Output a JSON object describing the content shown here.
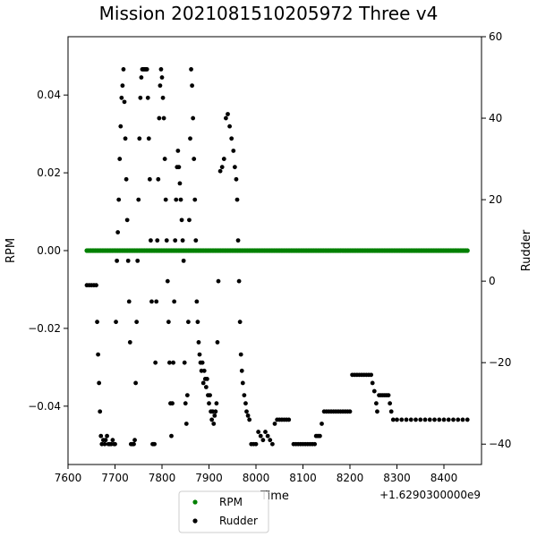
{
  "chart_data": {
    "type": "scatter",
    "title": "Mission 2021081510205972 Three v4",
    "xlabel": "Time",
    "ylabel_left": "RPM",
    "ylabel_right": "Rudder",
    "x_offset_label": "+1.6290300000e9",
    "xlim": [
      7600,
      8480
    ],
    "ylim_left": [
      -0.055,
      0.055
    ],
    "ylim_right": [
      -45,
      60
    ],
    "x_ticks": [
      7600,
      7700,
      7800,
      7900,
      8000,
      8100,
      8200,
      8300,
      8400
    ],
    "y_ticks_left": [
      -0.04,
      -0.02,
      0.0,
      0.02,
      0.04
    ],
    "y_tick_labels_left": [
      "−0.04",
      "−0.02",
      "0.00",
      "0.02",
      "0.04"
    ],
    "y_ticks_right": [
      -40,
      -20,
      0,
      20,
      40,
      60
    ],
    "y_tick_labels_right": [
      "−40",
      "−20",
      "0",
      "20",
      "40",
      "60"
    ],
    "grid": false,
    "legend_position": "bottom-center",
    "series": [
      {
        "name": "RPM",
        "axis": "left",
        "color": "#008000",
        "x_range": [
          7640,
          8450
        ],
        "value": 0.0
      },
      {
        "name": "Rudder",
        "axis": "right",
        "color": "#000000",
        "points": [
          [
            7640,
            -1
          ],
          [
            7645,
            -1
          ],
          [
            7650,
            -1
          ],
          [
            7655,
            -1
          ],
          [
            7660,
            -1
          ],
          [
            7662,
            -10
          ],
          [
            7664,
            -18
          ],
          [
            7666,
            -25
          ],
          [
            7668,
            -32
          ],
          [
            7670,
            -38
          ],
          [
            7672,
            -40
          ],
          [
            7675,
            -39
          ],
          [
            7678,
            -40
          ],
          [
            7680,
            -39
          ],
          [
            7683,
            -38
          ],
          [
            7686,
            -40
          ],
          [
            7689,
            -40
          ],
          [
            7692,
            -40
          ],
          [
            7695,
            -39
          ],
          [
            7698,
            -40
          ],
          [
            7700,
            -40
          ],
          [
            7702,
            -10
          ],
          [
            7704,
            5
          ],
          [
            7706,
            12
          ],
          [
            7708,
            20
          ],
          [
            7710,
            30
          ],
          [
            7712,
            38
          ],
          [
            7714,
            45
          ],
          [
            7716,
            48
          ],
          [
            7718,
            52
          ],
          [
            7720,
            44
          ],
          [
            7722,
            35
          ],
          [
            7724,
            25
          ],
          [
            7726,
            15
          ],
          [
            7728,
            5
          ],
          [
            7730,
            -5
          ],
          [
            7732,
            -15
          ],
          [
            7734,
            -40
          ],
          [
            7736,
            -40
          ],
          [
            7738,
            -40
          ],
          [
            7740,
            -40
          ],
          [
            7742,
            -39
          ],
          [
            7744,
            -25
          ],
          [
            7746,
            -10
          ],
          [
            7748,
            5
          ],
          [
            7750,
            20
          ],
          [
            7752,
            35
          ],
          [
            7754,
            45
          ],
          [
            7756,
            50
          ],
          [
            7758,
            52
          ],
          [
            7760,
            52
          ],
          [
            7762,
            52
          ],
          [
            7764,
            52
          ],
          [
            7766,
            52
          ],
          [
            7768,
            52
          ],
          [
            7770,
            45
          ],
          [
            7772,
            35
          ],
          [
            7774,
            25
          ],
          [
            7776,
            10
          ],
          [
            7778,
            -5
          ],
          [
            7780,
            -40
          ],
          [
            7782,
            -40
          ],
          [
            7784,
            -40
          ],
          [
            7786,
            -20
          ],
          [
            7788,
            -5
          ],
          [
            7790,
            10
          ],
          [
            7792,
            25
          ],
          [
            7794,
            40
          ],
          [
            7796,
            48
          ],
          [
            7798,
            52
          ],
          [
            7800,
            50
          ],
          [
            7802,
            45
          ],
          [
            7804,
            40
          ],
          [
            7806,
            30
          ],
          [
            7808,
            20
          ],
          [
            7810,
            10
          ],
          [
            7812,
            0
          ],
          [
            7814,
            -10
          ],
          [
            7816,
            -20
          ],
          [
            7818,
            -30
          ],
          [
            7820,
            -38
          ],
          [
            7822,
            -30
          ],
          [
            7824,
            -20
          ],
          [
            7826,
            -5
          ],
          [
            7828,
            10
          ],
          [
            7830,
            20
          ],
          [
            7832,
            28
          ],
          [
            7834,
            32
          ],
          [
            7836,
            28
          ],
          [
            7838,
            24
          ],
          [
            7840,
            20
          ],
          [
            7842,
            15
          ],
          [
            7844,
            10
          ],
          [
            7846,
            5
          ],
          [
            7848,
            -20
          ],
          [
            7850,
            -30
          ],
          [
            7852,
            -35
          ],
          [
            7854,
            -28
          ],
          [
            7856,
            -10
          ],
          [
            7858,
            15
          ],
          [
            7860,
            35
          ],
          [
            7862,
            52
          ],
          [
            7864,
            48
          ],
          [
            7866,
            40
          ],
          [
            7868,
            30
          ],
          [
            7870,
            20
          ],
          [
            7872,
            10
          ],
          [
            7874,
            -5
          ],
          [
            7876,
            -10
          ],
          [
            7878,
            -15
          ],
          [
            7880,
            -18
          ],
          [
            7882,
            -20
          ],
          [
            7884,
            -22
          ],
          [
            7886,
            -20
          ],
          [
            7888,
            -25
          ],
          [
            7890,
            -22
          ],
          [
            7892,
            -24
          ],
          [
            7894,
            -26
          ],
          [
            7896,
            -24
          ],
          [
            7898,
            -28
          ],
          [
            7900,
            -30
          ],
          [
            7902,
            -28
          ],
          [
            7904,
            -32
          ],
          [
            7906,
            -34
          ],
          [
            7908,
            -32
          ],
          [
            7910,
            -35
          ],
          [
            7912,
            -33
          ],
          [
            7914,
            -32
          ],
          [
            7916,
            -30
          ],
          [
            7918,
            -15
          ],
          [
            7920,
            0
          ],
          [
            7924,
            27
          ],
          [
            7928,
            28
          ],
          [
            7932,
            30
          ],
          [
            7936,
            40
          ],
          [
            7940,
            41
          ],
          [
            7944,
            38
          ],
          [
            7948,
            35
          ],
          [
            7952,
            32
          ],
          [
            7955,
            28
          ],
          [
            7958,
            25
          ],
          [
            7960,
            20
          ],
          [
            7962,
            10
          ],
          [
            7964,
            0
          ],
          [
            7966,
            -10
          ],
          [
            7968,
            -18
          ],
          [
            7970,
            -22
          ],
          [
            7972,
            -25
          ],
          [
            7975,
            -28
          ],
          [
            7978,
            -30
          ],
          [
            7980,
            -32
          ],
          [
            7983,
            -33
          ],
          [
            7986,
            -34
          ],
          [
            7990,
            -40
          ],
          [
            7995,
            -40
          ],
          [
            8000,
            -40
          ],
          [
            8005,
            -37
          ],
          [
            8010,
            -38
          ],
          [
            8015,
            -39
          ],
          [
            8020,
            -37
          ],
          [
            8025,
            -38
          ],
          [
            8030,
            -39
          ],
          [
            8035,
            -40
          ],
          [
            8040,
            -35
          ],
          [
            8045,
            -34
          ],
          [
            8050,
            -34
          ],
          [
            8055,
            -34
          ],
          [
            8060,
            -34
          ],
          [
            8065,
            -34
          ],
          [
            8070,
            -34
          ],
          [
            8080,
            -40
          ],
          [
            8085,
            -40
          ],
          [
            8090,
            -40
          ],
          [
            8095,
            -40
          ],
          [
            8100,
            -40
          ],
          [
            8105,
            -40
          ],
          [
            8110,
            -40
          ],
          [
            8115,
            -40
          ],
          [
            8120,
            -40
          ],
          [
            8125,
            -40
          ],
          [
            8128,
            -38
          ],
          [
            8132,
            -38
          ],
          [
            8136,
            -38
          ],
          [
            8140,
            -35
          ],
          [
            8145,
            -32
          ],
          [
            8150,
            -32
          ],
          [
            8155,
            -32
          ],
          [
            8160,
            -32
          ],
          [
            8165,
            -32
          ],
          [
            8170,
            -32
          ],
          [
            8175,
            -32
          ],
          [
            8180,
            -32
          ],
          [
            8185,
            -32
          ],
          [
            8190,
            -32
          ],
          [
            8195,
            -32
          ],
          [
            8200,
            -32
          ],
          [
            8205,
            -23
          ],
          [
            8210,
            -23
          ],
          [
            8215,
            -23
          ],
          [
            8220,
            -23
          ],
          [
            8225,
            -23
          ],
          [
            8230,
            -23
          ],
          [
            8235,
            -23
          ],
          [
            8240,
            -23
          ],
          [
            8245,
            -23
          ],
          [
            8248,
            -25
          ],
          [
            8252,
            -27
          ],
          [
            8256,
            -30
          ],
          [
            8258,
            -32
          ],
          [
            8262,
            -28
          ],
          [
            8266,
            -28
          ],
          [
            8270,
            -28
          ],
          [
            8274,
            -28
          ],
          [
            8278,
            -28
          ],
          [
            8282,
            -28
          ],
          [
            8285,
            -30
          ],
          [
            8288,
            -32
          ],
          [
            8292,
            -34
          ],
          [
            8300,
            -34
          ],
          [
            8310,
            -34
          ],
          [
            8320,
            -34
          ],
          [
            8330,
            -34
          ],
          [
            8340,
            -34
          ],
          [
            8350,
            -34
          ],
          [
            8360,
            -34
          ],
          [
            8370,
            -34
          ],
          [
            8380,
            -34
          ],
          [
            8390,
            -34
          ],
          [
            8400,
            -34
          ],
          [
            8410,
            -34
          ],
          [
            8420,
            -34
          ],
          [
            8430,
            -34
          ],
          [
            8440,
            -34
          ],
          [
            8450,
            -34
          ]
        ]
      }
    ]
  }
}
